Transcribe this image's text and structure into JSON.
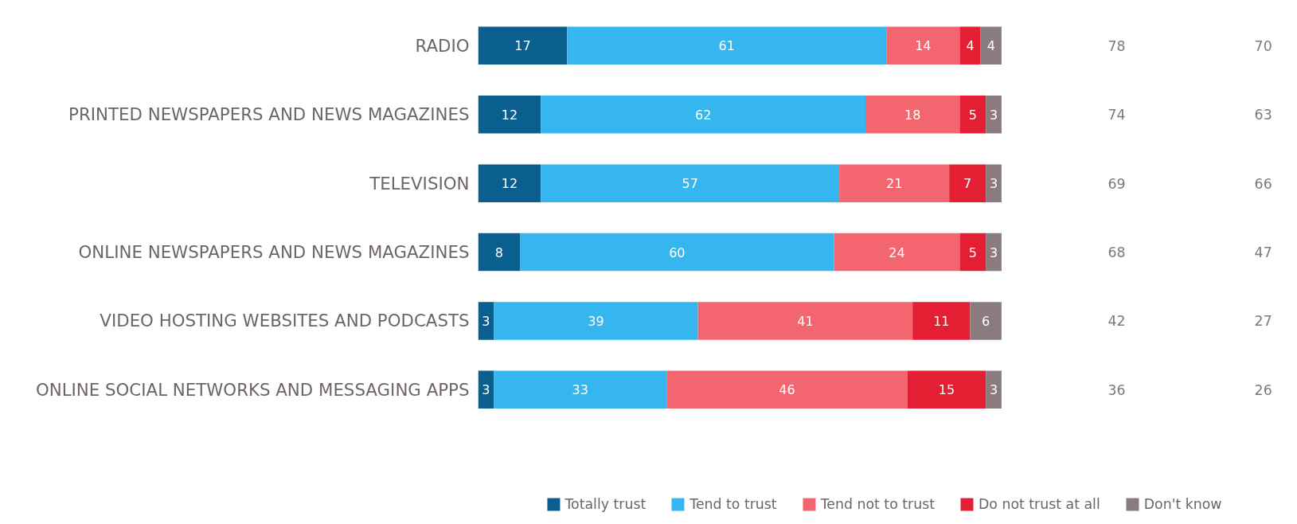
{
  "chart_data": {
    "type": "bar",
    "orientation": "horizontal",
    "stacked": true,
    "tick_labels": "y",
    "data_labels": true,
    "legend": "bottom",
    "grid": false,
    "categories": [
      "RADIO",
      "PRINTED NEWSPAPERS AND NEWS MAGAZINES",
      "TELEVISION",
      "ONLINE NEWSPAPERS AND NEWS MAGAZINES",
      "VIDEO HOSTING WEBSITES AND PODCASTS",
      "ONLINE SOCIAL NETWORKS AND MESSAGING APPS"
    ],
    "series": [
      {
        "name": "Totally trust",
        "color": "#0b5f8f",
        "values": [
          17,
          12,
          12,
          8,
          3,
          3
        ]
      },
      {
        "name": "Tend to trust",
        "color": "#35b6ee",
        "values": [
          61,
          62,
          57,
          60,
          39,
          33
        ]
      },
      {
        "name": "Tend not to trust",
        "color": "#f4666f",
        "values": [
          14,
          18,
          21,
          24,
          41,
          46
        ]
      },
      {
        "name": "Do not trust at all",
        "color": "#e41f33",
        "values": [
          4,
          5,
          7,
          5,
          11,
          15
        ]
      },
      {
        "name": "Don't know",
        "color": "#8a7b7e",
        "values": [
          4,
          3,
          3,
          3,
          6,
          3
        ]
      }
    ],
    "annotations": [
      "78",
      "70",
      "74",
      "63",
      "69",
      "66",
      "68",
      "47",
      "42",
      "27",
      "36",
      "26"
    ]
  }
}
